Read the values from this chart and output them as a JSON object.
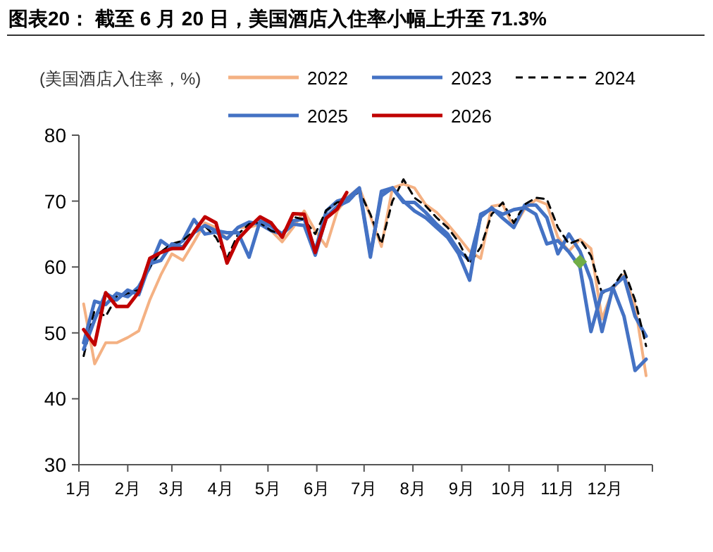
{
  "chart_data": {
    "type": "line",
    "title": "图表20： 截至 6 月 20 日，美国酒店入住率小幅上升至 71.3%",
    "ylabel": "(美国酒店入住率，%)",
    "xlim": [
      "--01-01",
      "--12-31"
    ],
    "xticks": [
      {
        "value": "--01-01",
        "label": "1月"
      },
      {
        "value": "--02-01",
        "label": "2月"
      },
      {
        "value": "--03-01",
        "label": "3月"
      },
      {
        "value": "--04-01",
        "label": "4月"
      },
      {
        "value": "--05-01",
        "label": "5月"
      },
      {
        "value": "--06-01",
        "label": "6月"
      },
      {
        "value": "--07-01",
        "label": "7月"
      },
      {
        "value": "--08-01",
        "label": "8月"
      },
      {
        "value": "--09-01",
        "label": "9月"
      },
      {
        "value": "--10-01",
        "label": "10月"
      },
      {
        "value": "--11-01",
        "label": "11月"
      },
      {
        "value": "--12-01",
        "label": "12月"
      },
      {
        "value": "--12-31",
        "label": null
      }
    ],
    "ylim": [
      30,
      80
    ],
    "yticks": [
      30,
      40,
      50,
      60,
      70,
      80
    ],
    "grid": false,
    "legend": "top",
    "x": [
      "--01-04",
      "--01-11",
      "--01-18",
      "--01-25",
      "--02-01",
      "--02-08",
      "--02-15",
      "--02-22",
      "--03-01",
      "--03-08",
      "--03-15",
      "--03-22",
      "--03-29",
      "--04-05",
      "--04-12",
      "--04-19",
      "--04-26",
      "--05-03",
      "--05-10",
      "--05-17",
      "--05-24",
      "--05-31",
      "--06-07",
      "--06-14",
      "--06-21",
      "--06-28",
      "--07-05",
      "--07-12",
      "--07-19",
      "--07-26",
      "--08-02",
      "--08-09",
      "--08-16",
      "--08-23",
      "--08-30",
      "--09-06",
      "--09-13",
      "--09-20",
      "--09-27",
      "--10-04",
      "--10-11",
      "--10-18",
      "--10-25",
      "--11-01",
      "--11-08",
      "--11-15",
      "--11-22",
      "--11-29",
      "--12-06",
      "--12-13",
      "--12-20",
      "--12-27"
    ],
    "series": [
      {
        "name": "2022",
        "color": "#f4b183",
        "line_style": "solid",
        "values": [
          54.4,
          45.3,
          48.5,
          48.5,
          49.3,
          50.3,
          55,
          58.8,
          62,
          61,
          63.8,
          66.7,
          66,
          64.2,
          66,
          66,
          66.5,
          65.5,
          63.8,
          66,
          68.5,
          65.5,
          63.1,
          68.5,
          70.7,
          72,
          67.7,
          63.1,
          72,
          72.6,
          72,
          69.5,
          68.3,
          66.5,
          64.5,
          62.4,
          61.3,
          69.2,
          69.5,
          66,
          68.8,
          70.2,
          69.5,
          64.5,
          62.4,
          64.2,
          62.8,
          52.1,
          56.7,
          58.8,
          54.2,
          43.5
        ]
      },
      {
        "name": "2023",
        "color": "#4472c4",
        "line_style": "solid",
        "values": [
          48.5,
          54.8,
          54.3,
          56,
          55.5,
          57,
          60,
          64,
          62.8,
          64,
          67.2,
          65,
          65.3,
          64.3,
          66,
          66.8,
          66.5,
          65.5,
          65,
          67,
          67.3,
          62.5,
          68.5,
          70,
          70.5,
          72,
          62,
          70.8,
          72,
          69.8,
          69.8,
          68.3,
          66.5,
          65,
          62.5,
          61,
          67.6,
          69,
          67.4,
          66,
          69.4,
          69.4,
          67.5,
          62,
          65,
          62.4,
          58,
          50.2,
          57,
          58.5,
          52.5,
          49.5
        ]
      },
      {
        "name": "2024",
        "color": "#000000",
        "line_style": "dashed",
        "values": [
          46.5,
          53.5,
          52.5,
          55.5,
          56,
          56.5,
          60,
          62.3,
          63.5,
          64,
          65.5,
          66.2,
          64.5,
          61.3,
          65,
          66.5,
          66.7,
          65.5,
          65,
          67.6,
          67.2,
          65,
          68.6,
          69.8,
          70,
          71.5,
          68,
          63.5,
          70,
          73.3,
          70.5,
          69.3,
          67.5,
          66,
          63.8,
          60.5,
          63,
          68,
          69.8,
          66.7,
          69.5,
          70.5,
          70.3,
          66,
          63.5,
          64.2,
          61.7,
          56,
          57,
          59.5,
          55,
          48
        ]
      },
      {
        "name": "2025",
        "color": "#4472c4",
        "line_style": "solid",
        "values": [
          47.5,
          52,
          56,
          55,
          56.5,
          55.8,
          60.5,
          61,
          63.5,
          63,
          65.2,
          66.3,
          65.5,
          65.2,
          65.2,
          61.5,
          67,
          66.2,
          65,
          66.5,
          66.3,
          61.8,
          67.6,
          69.2,
          70,
          71.8,
          61.5,
          71.5,
          72,
          70,
          68.5,
          67.5,
          66,
          64.5,
          62,
          58,
          68,
          68.8,
          68,
          68.7,
          69,
          68,
          63.5,
          64,
          62.3,
          60,
          50.2,
          56.2,
          56.8,
          52.5,
          44.3,
          46
        ]
      },
      {
        "name": "2026",
        "color": "#c00000",
        "line_style": "solid",
        "x": [
          "--01-04",
          "--01-11",
          "--01-18",
          "--01-25",
          "--02-01",
          "--02-08",
          "--02-15",
          "--02-22",
          "--03-01",
          "--03-08",
          "--03-15",
          "--03-22",
          "--03-29",
          "--04-05",
          "--04-12",
          "--04-19",
          "--04-26",
          "--05-03",
          "--05-10",
          "--05-17",
          "--05-24",
          "--05-31",
          "--06-07",
          "--06-14",
          "--06-20"
        ],
        "values": [
          50.5,
          48.2,
          56.1,
          54,
          54,
          56.2,
          61.3,
          62.2,
          62.8,
          62.8,
          65.3,
          67.6,
          66.7,
          60.6,
          64.2,
          66,
          67.6,
          66.7,
          64.5,
          68.1,
          68,
          62.2,
          67.4,
          68.8,
          71.3
        ]
      },
      {
        "type": "scatter",
        "marker": "diamond",
        "color": "#70ad47",
        "x": [
          "--11-15"
        ],
        "values": [
          60.8
        ]
      }
    ]
  }
}
